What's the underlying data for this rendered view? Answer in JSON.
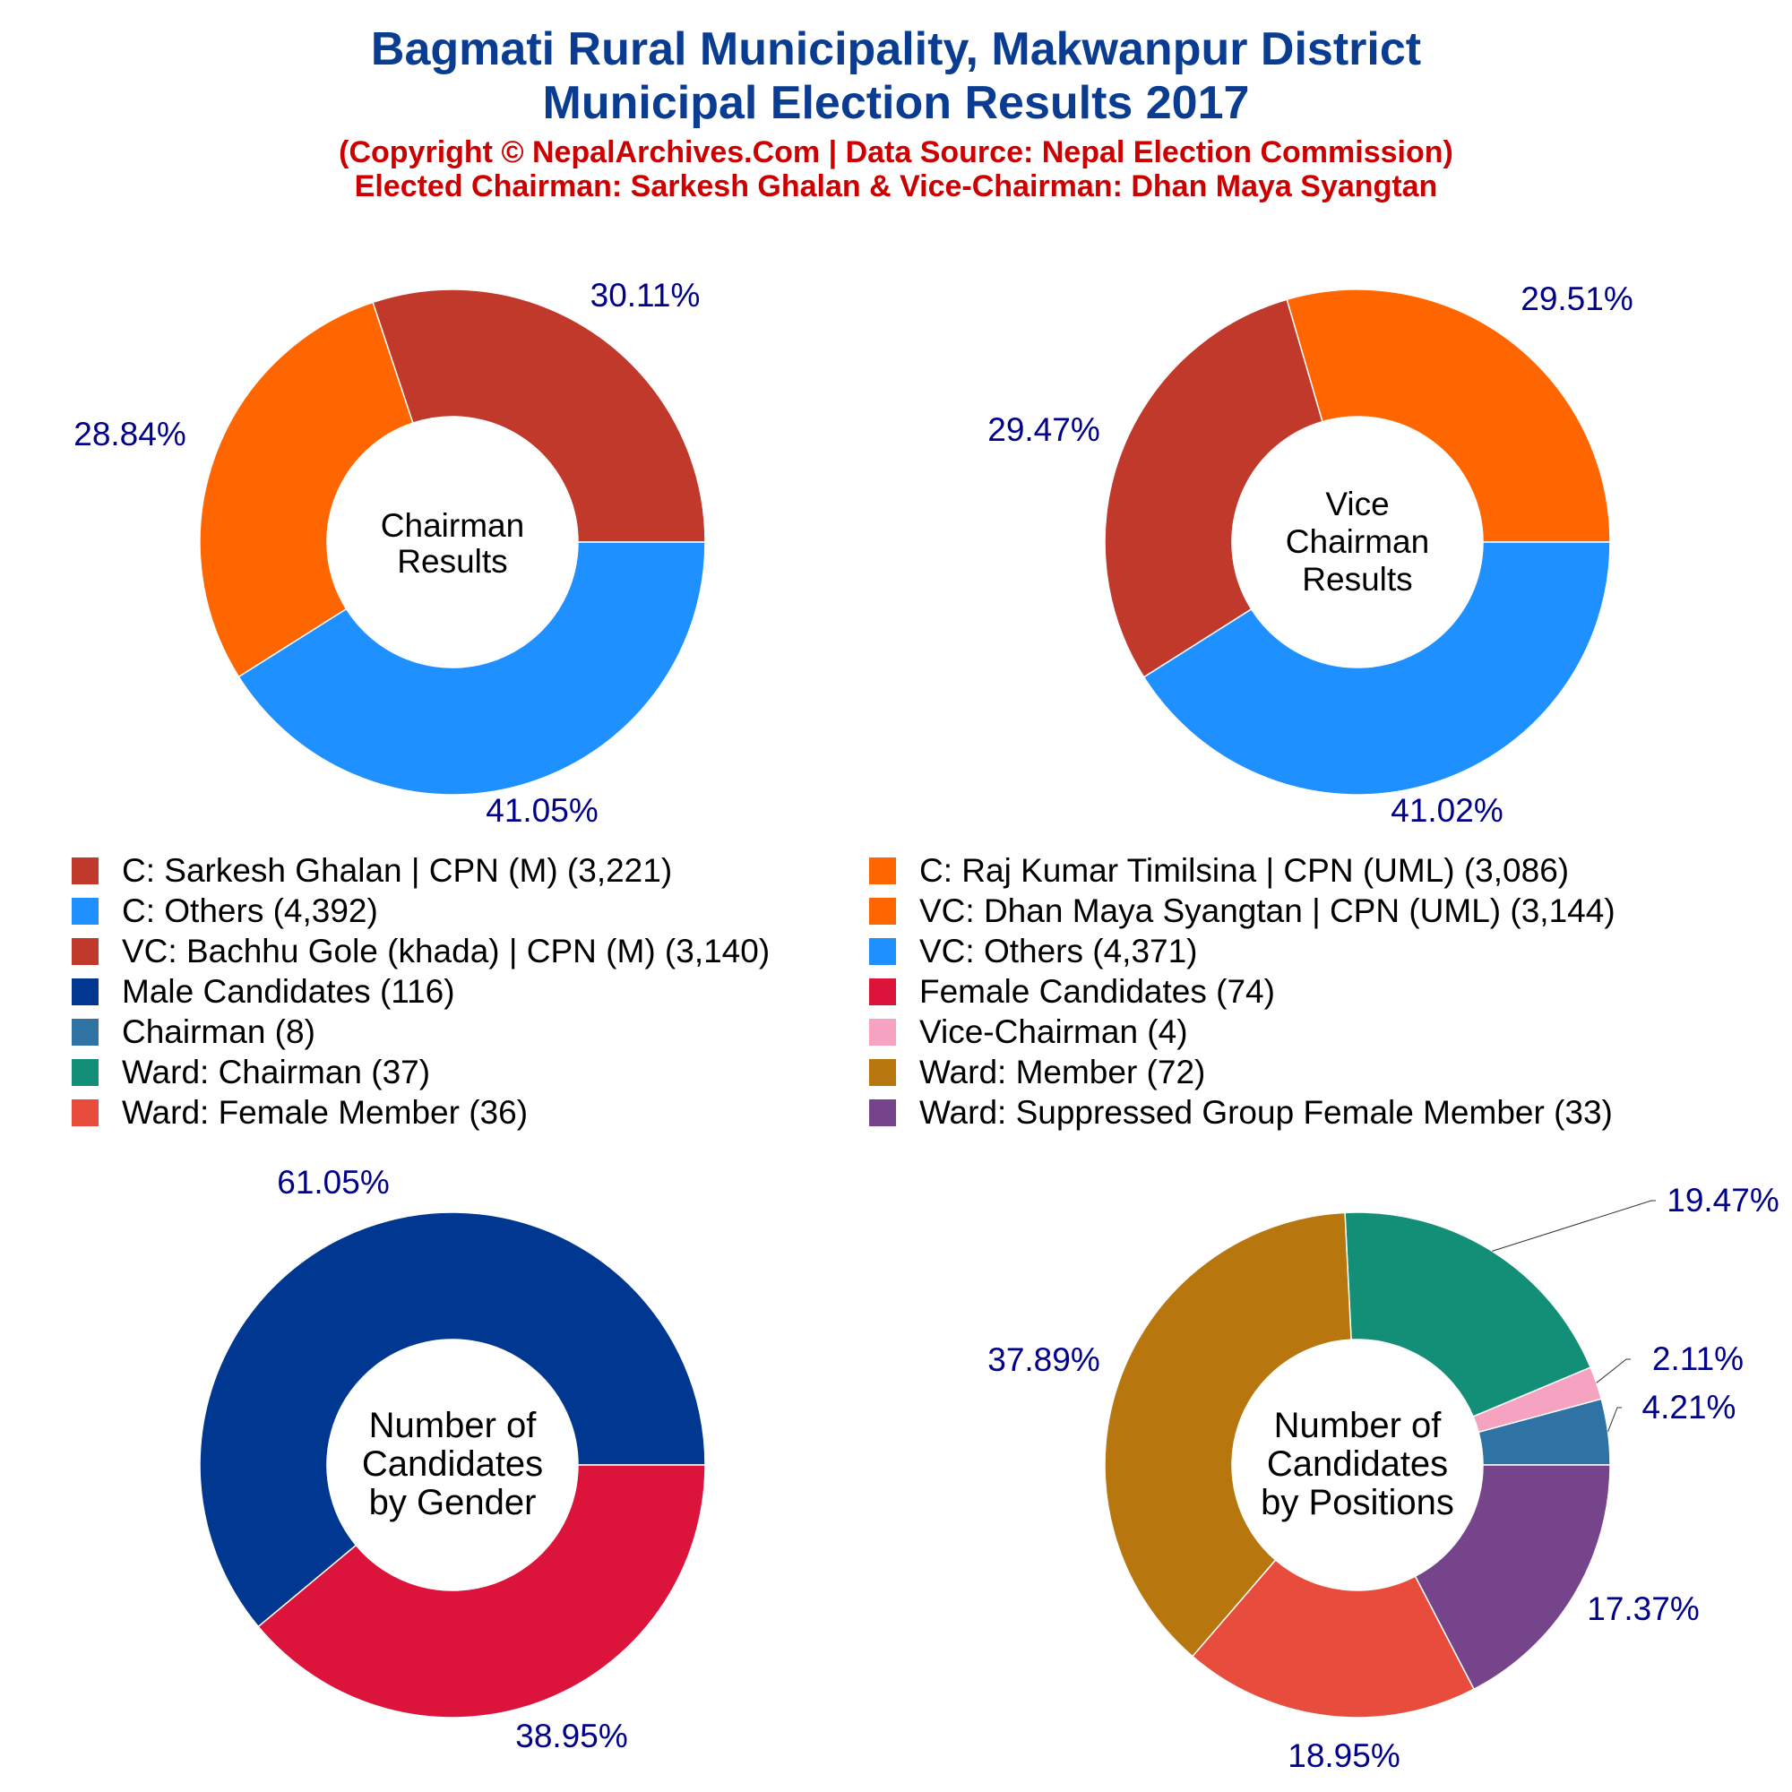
{
  "header": {
    "title_line1": "Bagmati Rural Municipality, Makwanpur District",
    "title_line2": "Municipal Election Results 2017",
    "subtitle_line1": "(Copyright © NepalArchives.Com | Data Source: Nepal Election Commission)",
    "subtitle_line2": "Elected Chairman: Sarkesh Ghalan & Vice-Chairman: Dhan Maya Syangtan"
  },
  "legend": [
    {
      "label": "C: Sarkesh Ghalan | CPN (M) (3,221)",
      "color": "#c0392b"
    },
    {
      "label": "C: Raj Kumar Timilsina | CPN (UML) (3,086)",
      "color": "#ff6600"
    },
    {
      "label": "C: Others (4,392)",
      "color": "#1e90ff"
    },
    {
      "label": "VC: Dhan Maya Syangtan | CPN (UML) (3,144)",
      "color": "#ff6600"
    },
    {
      "label": "VC: Bachhu Gole (khada) | CPN (M) (3,140)",
      "color": "#c0392b"
    },
    {
      "label": "VC: Others (4,371)",
      "color": "#1e90ff"
    },
    {
      "label": "Male Candidates (116)",
      "color": "#003891"
    },
    {
      "label": "Female Candidates (74)",
      "color": "#dc143c"
    },
    {
      "label": "Chairman (8)",
      "color": "#2e73a4"
    },
    {
      "label": "Vice-Chairman (4)",
      "color": "#f5a3c0"
    },
    {
      "label": "Ward: Chairman (37)",
      "color": "#148f77"
    },
    {
      "label": "Ward: Member (72)",
      "color": "#b8770e"
    },
    {
      "label": "Ward: Female Member (36)",
      "color": "#e74c3c"
    },
    {
      "label": "Ward: Suppressed Group Female Member (33)",
      "color": "#76448a"
    }
  ],
  "chart_data": [
    {
      "type": "pie",
      "center_label": [
        "Chairman",
        "Results"
      ],
      "slices": [
        {
          "label": "C: Sarkesh Ghalan | CPN (M)",
          "value": 3221,
          "percent_label": "30.11%",
          "color": "#c0392b"
        },
        {
          "label": "C: Raj Kumar Timilsina | CPN (UML)",
          "value": 3086,
          "percent_label": "28.84%",
          "color": "#ff6600"
        },
        {
          "label": "C: Others",
          "value": 4392,
          "percent_label": "41.05%",
          "color": "#1e90ff"
        }
      ]
    },
    {
      "type": "pie",
      "center_label": [
        "Vice",
        "Chairman",
        "Results"
      ],
      "slices": [
        {
          "label": "VC: Dhan Maya Syangtan | CPN (UML)",
          "value": 3144,
          "percent_label": "29.51%",
          "color": "#ff6600"
        },
        {
          "label": "VC: Bachhu Gole (khada) | CPN (M)",
          "value": 3140,
          "percent_label": "29.47%",
          "color": "#c0392b"
        },
        {
          "label": "VC: Others",
          "value": 4371,
          "percent_label": "41.02%",
          "color": "#1e90ff"
        }
      ]
    },
    {
      "type": "pie",
      "center_label": [
        "Number of",
        "Candidates",
        "by Gender"
      ],
      "slices": [
        {
          "label": "Male Candidates",
          "value": 116,
          "percent_label": "61.05%",
          "color": "#003891"
        },
        {
          "label": "Female Candidates",
          "value": 74,
          "percent_label": "38.95%",
          "color": "#dc143c"
        }
      ]
    },
    {
      "type": "pie",
      "center_label": [
        "Number of",
        "Candidates",
        "by Positions"
      ],
      "slices": [
        {
          "label": "Chairman",
          "value": 8,
          "percent_label": "4.21%",
          "color": "#2e73a4"
        },
        {
          "label": "Vice-Chairman",
          "value": 4,
          "percent_label": "2.11%",
          "color": "#f5a3c0"
        },
        {
          "label": "Ward: Chairman",
          "value": 37,
          "percent_label": "19.47%",
          "color": "#148f77"
        },
        {
          "label": "Ward: Member",
          "value": 72,
          "percent_label": "37.89%",
          "color": "#b8770e"
        },
        {
          "label": "Ward: Female Member",
          "value": 36,
          "percent_label": "18.95%",
          "color": "#e74c3c"
        },
        {
          "label": "Ward: Suppressed Group Female Member",
          "value": 33,
          "percent_label": "17.37%",
          "color": "#76448a"
        }
      ]
    }
  ]
}
